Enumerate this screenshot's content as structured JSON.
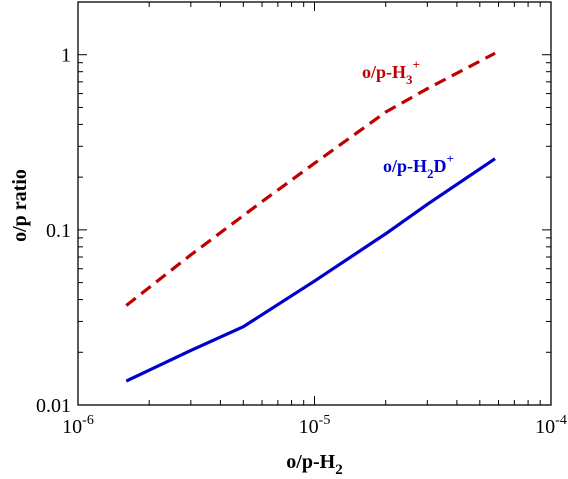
{
  "chart_data": {
    "type": "line",
    "xscale": "log",
    "yscale": "log",
    "xlim": [
      1e-06,
      0.0001
    ],
    "ylim": [
      0.01,
      2
    ],
    "xlabel": {
      "base": "o/p-H",
      "sub": "2"
    },
    "ylabel": "o/p ratio",
    "x_ticks": [
      {
        "value": 1e-06,
        "base": "10",
        "exp": "-6"
      },
      {
        "value": 1e-05,
        "base": "10",
        "exp": "-5"
      },
      {
        "value": 0.0001,
        "base": "10",
        "exp": "-4"
      }
    ],
    "y_ticks": [
      {
        "value": 0.01,
        "label": "0.01"
      },
      {
        "value": 0.1,
        "label": "0.1"
      },
      {
        "value": 1,
        "label": "1"
      }
    ],
    "series": [
      {
        "name": "o/p-H3+",
        "label_parts": {
          "base": "o/p-H",
          "sub": "3",
          "sup": "+"
        },
        "color": "#c00000",
        "dash": true,
        "x": [
          1.6e-06,
          3e-06,
          6e-06,
          1e-05,
          2e-05,
          3e-05,
          5.8e-05
        ],
        "y": [
          0.037,
          0.072,
          0.145,
          0.24,
          0.47,
          0.64,
          1.02
        ]
      },
      {
        "name": "o/p-H2D+",
        "label_parts": {
          "base": "o/p-H",
          "sub": "2",
          "mid": "D",
          "sup": "+"
        },
        "color": "#0000cc",
        "dash": false,
        "x": [
          1.6e-06,
          2e-06,
          3e-06,
          5e-06,
          1e-05,
          2e-05,
          3e-05,
          5.8e-05
        ],
        "y": [
          0.0137,
          0.0158,
          0.0205,
          0.028,
          0.051,
          0.095,
          0.14,
          0.255
        ]
      }
    ]
  }
}
